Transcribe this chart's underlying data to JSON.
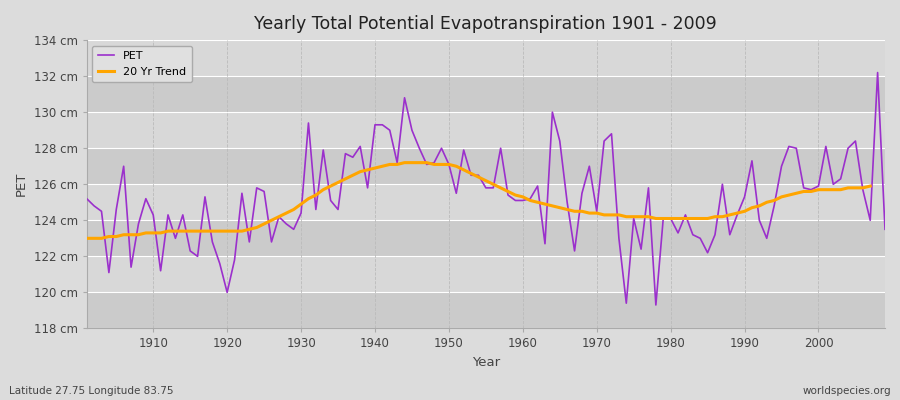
{
  "title": "Yearly Total Potential Evapotranspiration 1901 - 2009",
  "ylabel": "PET",
  "xlabel": "Year",
  "subtitle_left": "Latitude 27.75 Longitude 83.75",
  "subtitle_right": "worldspecies.org",
  "ylim": [
    118,
    134
  ],
  "xlim": [
    1901,
    2009
  ],
  "ytick_step": 2,
  "pet_color": "#9B30CC",
  "trend_color": "#FFA500",
  "bg_color": "#DCDCDC",
  "grid_color": "#FFFFFF",
  "years": [
    1901,
    1902,
    1903,
    1904,
    1905,
    1906,
    1907,
    1908,
    1909,
    1910,
    1911,
    1912,
    1913,
    1914,
    1915,
    1916,
    1917,
    1918,
    1919,
    1920,
    1921,
    1922,
    1923,
    1924,
    1925,
    1926,
    1927,
    1928,
    1929,
    1930,
    1931,
    1932,
    1933,
    1934,
    1935,
    1936,
    1937,
    1938,
    1939,
    1940,
    1941,
    1942,
    1943,
    1944,
    1945,
    1946,
    1947,
    1948,
    1949,
    1950,
    1951,
    1952,
    1953,
    1954,
    1955,
    1956,
    1957,
    1958,
    1959,
    1960,
    1961,
    1962,
    1963,
    1964,
    1965,
    1966,
    1967,
    1968,
    1969,
    1970,
    1971,
    1972,
    1973,
    1974,
    1975,
    1976,
    1977,
    1978,
    1979,
    1980,
    1981,
    1982,
    1983,
    1984,
    1985,
    1986,
    1987,
    1988,
    1989,
    1990,
    1991,
    1992,
    1993,
    1994,
    1995,
    1996,
    1997,
    1998,
    1999,
    2000,
    2001,
    2002,
    2003,
    2004,
    2005,
    2006,
    2007,
    2008,
    2009
  ],
  "pet_values": [
    125.2,
    124.8,
    124.5,
    121.1,
    124.6,
    127.0,
    121.4,
    123.8,
    125.2,
    124.3,
    121.2,
    124.3,
    123.0,
    124.3,
    122.3,
    122.0,
    125.3,
    122.8,
    121.6,
    120.0,
    121.8,
    125.5,
    122.8,
    125.8,
    125.6,
    122.8,
    124.2,
    123.8,
    123.5,
    124.4,
    129.4,
    124.6,
    127.9,
    125.1,
    124.6,
    127.7,
    127.5,
    128.1,
    125.8,
    129.3,
    129.3,
    129.0,
    127.2,
    130.8,
    129.0,
    128.0,
    127.1,
    127.2,
    128.0,
    127.1,
    125.5,
    127.9,
    126.5,
    126.5,
    125.8,
    125.8,
    128.0,
    125.4,
    125.1,
    125.1,
    125.2,
    125.9,
    122.7,
    130.0,
    128.4,
    125.0,
    122.3,
    125.5,
    127.0,
    124.5,
    128.4,
    128.8,
    123.0,
    119.4,
    124.1,
    122.4,
    125.8,
    119.3,
    124.1,
    124.1,
    123.3,
    124.3,
    123.2,
    123.0,
    122.2,
    123.2,
    126.0,
    123.2,
    124.3,
    125.3,
    127.3,
    124.0,
    123.0,
    124.8,
    127.0,
    128.1,
    128.0,
    125.8,
    125.7,
    125.9,
    128.1,
    126.0,
    126.3,
    128.0,
    128.4,
    125.7,
    124.0,
    132.2,
    123.5
  ],
  "trend_values": [
    123.0,
    123.0,
    123.0,
    123.1,
    123.1,
    123.2,
    123.2,
    123.2,
    123.3,
    123.3,
    123.3,
    123.4,
    123.4,
    123.4,
    123.4,
    123.4,
    123.4,
    123.4,
    123.4,
    123.4,
    123.4,
    123.4,
    123.5,
    123.6,
    123.8,
    124.0,
    124.2,
    124.4,
    124.6,
    124.9,
    125.2,
    125.4,
    125.7,
    125.9,
    126.1,
    126.3,
    126.5,
    126.7,
    126.8,
    126.9,
    127.0,
    127.1,
    127.1,
    127.2,
    127.2,
    127.2,
    127.2,
    127.1,
    127.1,
    127.1,
    127.0,
    126.8,
    126.6,
    126.4,
    126.2,
    126.0,
    125.8,
    125.6,
    125.4,
    125.3,
    125.1,
    125.0,
    124.9,
    124.8,
    124.7,
    124.6,
    124.5,
    124.5,
    124.4,
    124.4,
    124.3,
    124.3,
    124.3,
    124.2,
    124.2,
    124.2,
    124.2,
    124.1,
    124.1,
    124.1,
    124.1,
    124.1,
    124.1,
    124.1,
    124.1,
    124.2,
    124.2,
    124.3,
    124.4,
    124.5,
    124.7,
    124.8,
    125.0,
    125.1,
    125.3,
    125.4,
    125.5,
    125.6,
    125.6,
    125.7,
    125.7,
    125.7,
    125.7,
    125.8,
    125.8,
    125.8,
    125.9,
    null,
    null
  ]
}
